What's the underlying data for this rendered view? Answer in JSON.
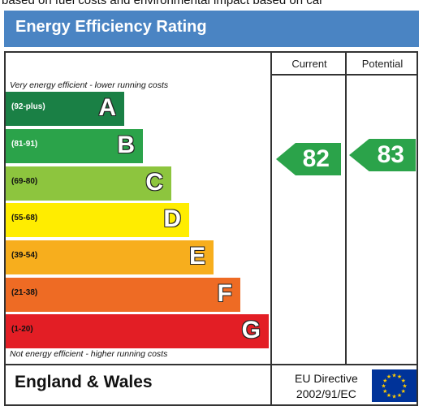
{
  "top_text": "based on fuel costs and environmental impact based on car",
  "header": {
    "title": "Energy Efficiency Rating"
  },
  "columns": {
    "current": "Current",
    "potential": "Potential"
  },
  "scale": {
    "top_note": "Very energy efficient - lower running costs",
    "bottom_note": "Not energy efficient - higher running costs"
  },
  "bands": [
    {
      "range": "(92-plus)",
      "letter": "A",
      "color": "#1a8045",
      "text_color": "#ffffff"
    },
    {
      "range": "(81-91)",
      "letter": "B",
      "color": "#2ba34a",
      "text_color": "#ffffff"
    },
    {
      "range": "(69-80)",
      "letter": "C",
      "color": "#8dc53e",
      "text_color": "#111111"
    },
    {
      "range": "(55-68)",
      "letter": "D",
      "color": "#ffed00",
      "text_color": "#111111"
    },
    {
      "range": "(39-54)",
      "letter": "E",
      "color": "#f7ae1d",
      "text_color": "#111111"
    },
    {
      "range": "(21-38)",
      "letter": "F",
      "color": "#ee6b24",
      "text_color": "#111111"
    },
    {
      "range": "(1-20)",
      "letter": "G",
      "color": "#e31e25",
      "text_color": "#111111"
    }
  ],
  "ratings": {
    "current": {
      "value": "82",
      "color": "#2ba34a"
    },
    "potential": {
      "value": "83",
      "color": "#2ba34a"
    }
  },
  "footer": {
    "region": "England & Wales",
    "directive_line1": "EU Directive",
    "directive_line2": "2002/91/EC",
    "flag_icon": "eu-flag-icon"
  }
}
